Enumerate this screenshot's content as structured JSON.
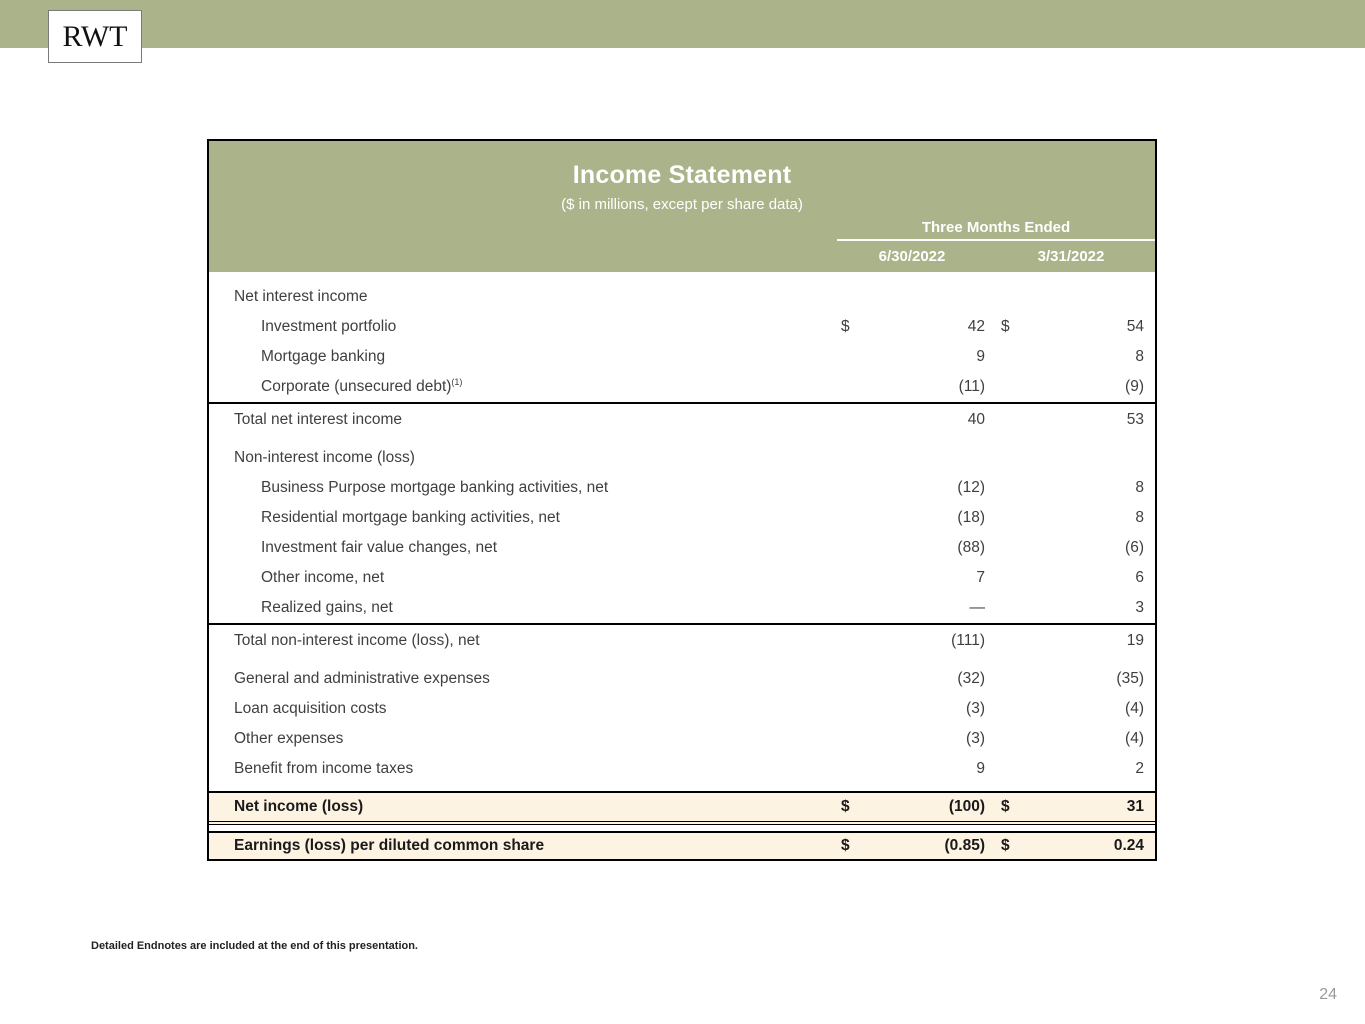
{
  "page": {
    "logo_text": "RWT",
    "footnote": "Detailed Endnotes are included at the end of this presentation.",
    "page_number": "24"
  },
  "colors": {
    "banner_green": "#aab389",
    "highlight_cream": "#fcf3e2",
    "body_text": "#3f3f3f",
    "header_text": "#ffffff",
    "border_black": "#000000",
    "page_number_gray": "#999999"
  },
  "table": {
    "title": "Income Statement",
    "subtitle": "($ in millions, except per share data)",
    "period_header": "Three Months Ended",
    "columns": [
      "6/30/2022",
      "3/31/2022"
    ],
    "rows": [
      {
        "label": "Net interest income",
        "sup": "",
        "indent": false,
        "d1": "",
        "v1": "",
        "d2": "",
        "v2": "",
        "style": ""
      },
      {
        "label": "Investment portfolio",
        "sup": "",
        "indent": true,
        "d1": "$",
        "v1": "42",
        "d2": "$",
        "v2": "54",
        "style": ""
      },
      {
        "label": "Mortgage banking",
        "sup": "",
        "indent": true,
        "d1": "",
        "v1": "9",
        "d2": "",
        "v2": "8",
        "style": ""
      },
      {
        "label": "Corporate (unsecured debt)",
        "sup": "(1)",
        "indent": true,
        "d1": "",
        "v1": "(11)",
        "d2": "",
        "v2": "(9)",
        "style": ""
      },
      {
        "label": "Total net interest income",
        "sup": "",
        "indent": false,
        "d1": "",
        "v1": "40",
        "d2": "",
        "v2": "53",
        "style": "subtotal"
      },
      {
        "label": "Non-interest income (loss)",
        "sup": "",
        "indent": false,
        "d1": "",
        "v1": "",
        "d2": "",
        "v2": "",
        "style": "gap-above"
      },
      {
        "label": "Business Purpose mortgage banking activities, net",
        "sup": "",
        "indent": true,
        "d1": "",
        "v1": "(12)",
        "d2": "",
        "v2": "8",
        "style": ""
      },
      {
        "label": "Residential mortgage banking activities, net",
        "sup": "",
        "indent": true,
        "d1": "",
        "v1": "(18)",
        "d2": "",
        "v2": "8",
        "style": ""
      },
      {
        "label": "Investment fair value changes, net",
        "sup": "",
        "indent": true,
        "d1": "",
        "v1": "(88)",
        "d2": "",
        "v2": "(6)",
        "style": ""
      },
      {
        "label": "Other income, net",
        "sup": "",
        "indent": true,
        "d1": "",
        "v1": "7",
        "d2": "",
        "v2": "6",
        "style": ""
      },
      {
        "label": "Realized gains, net",
        "sup": "",
        "indent": true,
        "d1": "",
        "v1": "—",
        "d2": "",
        "v2": "3",
        "style": ""
      },
      {
        "label": "Total non-interest income (loss), net",
        "sup": "",
        "indent": false,
        "d1": "",
        "v1": "(111)",
        "d2": "",
        "v2": "19",
        "style": "subtotal"
      },
      {
        "label": "General and administrative expenses",
        "sup": "",
        "indent": false,
        "d1": "",
        "v1": "(32)",
        "d2": "",
        "v2": "(35)",
        "style": "gap-above"
      },
      {
        "label": "Loan acquisition costs",
        "sup": "",
        "indent": false,
        "d1": "",
        "v1": "(3)",
        "d2": "",
        "v2": "(4)",
        "style": ""
      },
      {
        "label": "Other expenses",
        "sup": "",
        "indent": false,
        "d1": "",
        "v1": "(3)",
        "d2": "",
        "v2": "(4)",
        "style": ""
      },
      {
        "label": "Benefit from income taxes",
        "sup": "",
        "indent": false,
        "d1": "",
        "v1": "9",
        "d2": "",
        "v2": "2",
        "style": ""
      },
      {
        "label": "Net income (loss)",
        "sup": "",
        "indent": false,
        "d1": "$",
        "v1": "(100)",
        "d2": "$",
        "v2": "31",
        "style": "net-income"
      },
      {
        "label": "Earnings (loss) per diluted common share",
        "sup": "",
        "indent": false,
        "d1": "$",
        "v1": "(0.85)",
        "d2": "$",
        "v2": "0.24",
        "style": "eps"
      }
    ]
  }
}
